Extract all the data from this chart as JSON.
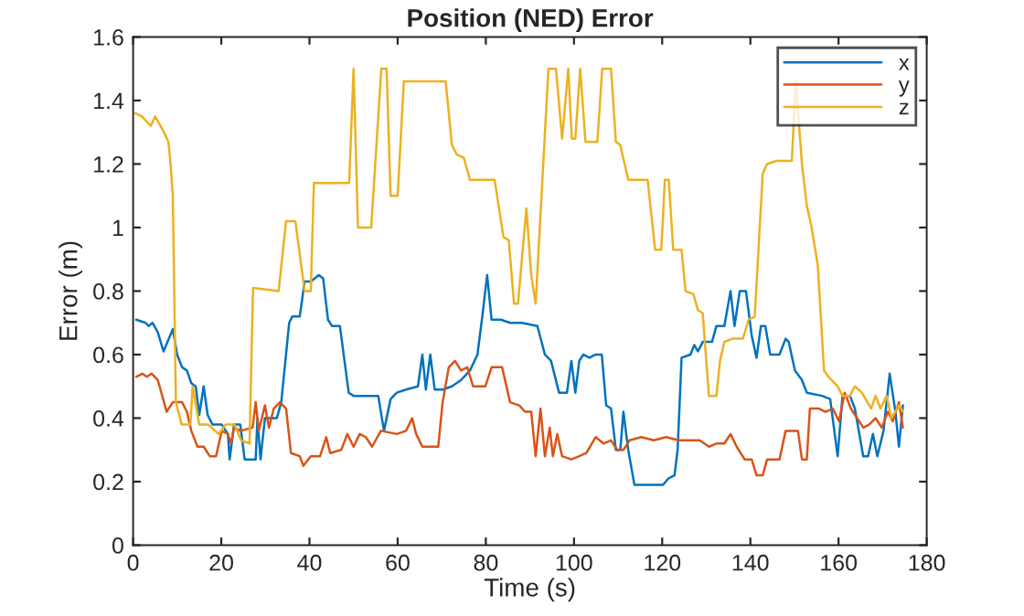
{
  "chart_data": {
    "type": "line",
    "title": "Position (NED) Error",
    "xlabel": "Time (s)",
    "ylabel": "Error (m)",
    "xlim": [
      0,
      180
    ],
    "xticks": [
      0,
      20,
      40,
      60,
      80,
      100,
      120,
      140,
      160,
      180
    ],
    "ylim": [
      0,
      1.6
    ],
    "yticks": [
      0,
      0.2,
      0.4,
      0.6,
      0.8,
      1,
      1.2,
      1.4,
      1.6
    ],
    "grid": false,
    "legend": "top right",
    "marker": "none",
    "line_style": "solid",
    "series": [
      {
        "name": "x",
        "color": "#0072bd",
        "x": [
          0.7,
          2.8,
          3.5,
          4.4,
          5.6,
          6.9,
          9,
          10,
          11.1,
          12.2,
          13.2,
          14.2,
          15,
          16,
          16.9,
          18,
          20.1,
          21.5,
          21.9,
          22.9,
          24.3,
          25.3,
          27.8,
          28.2,
          28.9,
          29.9,
          32.6,
          33.6,
          35.4,
          36.1,
          37.8,
          38.9,
          40.3,
          42.1,
          43.1,
          44.2,
          45.1,
          46.9,
          48.9,
          50,
          55.6,
          56.9,
          58.4,
          59.8,
          61.9,
          64.6,
          65.6,
          66.4,
          67.4,
          68.4,
          70.2,
          72.3,
          74.4,
          76.4,
          78.1,
          79.2,
          80.3,
          81.3,
          83.4,
          85.5,
          88.2,
          91.7,
          93.4,
          94.8,
          96.6,
          98.4,
          99.4,
          100.3,
          101.2,
          102.1,
          103.5,
          104.9,
          106.3,
          107.3,
          108.4,
          109.5,
          110.5,
          111.2,
          112.3,
          113.7,
          120.2,
          121.4,
          122.8,
          123.5,
          124.4,
          126.4,
          127.3,
          128.1,
          129.2,
          131.3,
          132.3,
          134.1,
          135.5,
          136.4,
          137.6,
          139,
          140.3,
          141.4,
          142.4,
          143.4,
          144.5,
          146.6,
          148,
          148.7,
          150.1,
          151.7,
          152.8,
          156.3,
          158.1,
          159.8,
          160.9,
          162.6,
          163.7,
          165.6,
          166.7,
          167.8,
          168.8,
          170.2,
          171.6,
          172.9,
          173.7,
          174.6
        ],
        "values": [
          0.71,
          0.7,
          0.69,
          0.7,
          0.67,
          0.61,
          0.68,
          0.6,
          0.56,
          0.55,
          0.51,
          0.5,
          0.41,
          0.5,
          0.41,
          0.38,
          0.38,
          0.35,
          0.27,
          0.38,
          0.38,
          0.27,
          0.27,
          0.4,
          0.27,
          0.4,
          0.4,
          0.45,
          0.7,
          0.72,
          0.72,
          0.83,
          0.83,
          0.85,
          0.84,
          0.71,
          0.69,
          0.69,
          0.48,
          0.47,
          0.47,
          0.36,
          0.46,
          0.48,
          0.49,
          0.5,
          0.6,
          0.49,
          0.6,
          0.49,
          0.49,
          0.5,
          0.52,
          0.55,
          0.6,
          0.72,
          0.85,
          0.71,
          0.71,
          0.7,
          0.7,
          0.69,
          0.6,
          0.58,
          0.48,
          0.48,
          0.58,
          0.48,
          0.58,
          0.6,
          0.59,
          0.6,
          0.6,
          0.44,
          0.43,
          0.3,
          0.3,
          0.42,
          0.3,
          0.19,
          0.19,
          0.21,
          0.22,
          0.3,
          0.59,
          0.6,
          0.63,
          0.61,
          0.64,
          0.64,
          0.69,
          0.69,
          0.8,
          0.69,
          0.8,
          0.8,
          0.66,
          0.59,
          0.69,
          0.69,
          0.6,
          0.6,
          0.65,
          0.64,
          0.55,
          0.52,
          0.48,
          0.47,
          0.46,
          0.28,
          0.47,
          0.47,
          0.43,
          0.28,
          0.28,
          0.35,
          0.28,
          0.36,
          0.54,
          0.42,
          0.31,
          0.44
        ]
      },
      {
        "name": "y",
        "color": "#d95319",
        "x": [
          0.7,
          2.1,
          3.1,
          4.2,
          5.6,
          7.6,
          9,
          11.1,
          12.2,
          13.2,
          14.6,
          16,
          17.4,
          18.8,
          20.1,
          21.5,
          22.2,
          22.9,
          24.3,
          27.1,
          27.8,
          28.5,
          29.9,
          30.8,
          31.9,
          33.3,
          34.7,
          35.8,
          37.8,
          38.6,
          40.3,
          42.4,
          43.8,
          44.7,
          47.2,
          48.6,
          50,
          51.4,
          52.8,
          54.2,
          56.2,
          59.8,
          61.9,
          63.3,
          64.2,
          65.6,
          69.2,
          70.2,
          71.6,
          73,
          74.4,
          75.8,
          77.1,
          79.9,
          81.3,
          83.7,
          85.5,
          87.6,
          88.9,
          90.3,
          91.3,
          92.4,
          93.4,
          94.5,
          95.2,
          96.2,
          97.3,
          99.4,
          101.2,
          102.8,
          104.9,
          106.7,
          108.4,
          109.8,
          111.2,
          112.6,
          115.3,
          118.1,
          120.9,
          123.7,
          128.5,
          130.6,
          132.3,
          134.1,
          135.5,
          136.9,
          138.7,
          140.3,
          141.4,
          142.8,
          143.8,
          146.6,
          148,
          150.8,
          151.7,
          152.8,
          153.5,
          155.6,
          157,
          158.7,
          160.1,
          161.4,
          162.8,
          164.2,
          165.6,
          167,
          168.4,
          169.8,
          171.2,
          172.3,
          173.7,
          174.6
        ],
        "values": [
          0.53,
          0.54,
          0.53,
          0.54,
          0.52,
          0.42,
          0.45,
          0.45,
          0.42,
          0.36,
          0.31,
          0.31,
          0.28,
          0.28,
          0.36,
          0.35,
          0.32,
          0.37,
          0.36,
          0.37,
          0.45,
          0.36,
          0.44,
          0.37,
          0.43,
          0.45,
          0.43,
          0.29,
          0.28,
          0.25,
          0.28,
          0.28,
          0.34,
          0.29,
          0.3,
          0.35,
          0.31,
          0.35,
          0.34,
          0.31,
          0.36,
          0.35,
          0.36,
          0.4,
          0.35,
          0.31,
          0.31,
          0.45,
          0.56,
          0.58,
          0.55,
          0.56,
          0.5,
          0.5,
          0.56,
          0.56,
          0.45,
          0.44,
          0.42,
          0.42,
          0.28,
          0.43,
          0.28,
          0.37,
          0.28,
          0.35,
          0.28,
          0.27,
          0.28,
          0.29,
          0.34,
          0.32,
          0.33,
          0.3,
          0.3,
          0.33,
          0.34,
          0.33,
          0.34,
          0.33,
          0.33,
          0.31,
          0.32,
          0.32,
          0.35,
          0.31,
          0.27,
          0.27,
          0.22,
          0.22,
          0.27,
          0.27,
          0.36,
          0.36,
          0.27,
          0.27,
          0.43,
          0.43,
          0.42,
          0.43,
          0.39,
          0.48,
          0.43,
          0.4,
          0.37,
          0.38,
          0.4,
          0.37,
          0.42,
          0.39,
          0.45,
          0.37
        ]
      },
      {
        "name": "z",
        "color": "#edb120",
        "x": [
          0.5,
          2,
          4,
          5,
          7,
          8,
          8.5,
          9,
          9.7,
          11,
          13,
          13.5,
          15,
          17,
          19.4,
          21,
          23,
          24.5,
          26.4,
          27.2,
          33,
          34.7,
          36.8,
          38.9,
          40.3,
          41,
          49,
          50,
          51,
          54,
          56.3,
          57.5,
          58.4,
          60,
          61.4,
          70.9,
          72.3,
          73.4,
          75,
          76.4,
          82,
          84,
          85.2,
          86.4,
          87.3,
          89.2,
          90.3,
          91.3,
          94.2,
          95.9,
          97.3,
          98.7,
          99.5,
          100.3,
          101.4,
          102.6,
          105.3,
          106.4,
          108.4,
          109.5,
          110.5,
          112.3,
          116.7,
          118.4,
          119.8,
          120.6,
          121.5,
          122.5,
          124.4,
          125.3,
          127.1,
          128.1,
          129.2,
          130.6,
          132.3,
          133.1,
          134.1,
          135.9,
          138.3,
          139.6,
          141,
          142.8,
          143.8,
          145.9,
          149.4,
          150.3,
          151.7,
          152.8,
          153.9,
          155.3,
          156.7,
          157.7,
          159.8,
          160.9,
          162.6,
          163.7,
          165.3,
          167.4,
          168.4,
          169.5,
          170.9,
          172,
          173.7,
          174.6
        ],
        "values": [
          1.36,
          1.35,
          1.32,
          1.35,
          1.3,
          1.27,
          1.2,
          1.1,
          0.45,
          0.38,
          0.38,
          0.5,
          0.38,
          0.38,
          0.35,
          0.38,
          0.38,
          0.33,
          0.32,
          0.81,
          0.8,
          1.02,
          1.02,
          0.8,
          0.8,
          1.14,
          1.14,
          1.5,
          1.0,
          1.0,
          1.5,
          1.5,
          1.1,
          1.1,
          1.46,
          1.46,
          1.26,
          1.23,
          1.22,
          1.15,
          1.15,
          0.97,
          0.96,
          0.76,
          0.76,
          1.06,
          0.85,
          0.76,
          1.5,
          1.5,
          1.28,
          1.5,
          1.28,
          1.28,
          1.5,
          1.27,
          1.27,
          1.5,
          1.5,
          1.27,
          1.26,
          1.15,
          1.15,
          0.93,
          0.93,
          1.15,
          1.15,
          0.93,
          0.93,
          0.8,
          0.79,
          0.74,
          0.73,
          0.47,
          0.47,
          0.58,
          0.64,
          0.65,
          0.65,
          0.71,
          0.72,
          1.17,
          1.2,
          1.21,
          1.21,
          1.46,
          1.2,
          1.07,
          1.0,
          0.88,
          0.55,
          0.53,
          0.5,
          0.47,
          0.47,
          0.5,
          0.48,
          0.43,
          0.47,
          0.43,
          0.47,
          0.4,
          0.44,
          0.42
        ]
      }
    ]
  }
}
